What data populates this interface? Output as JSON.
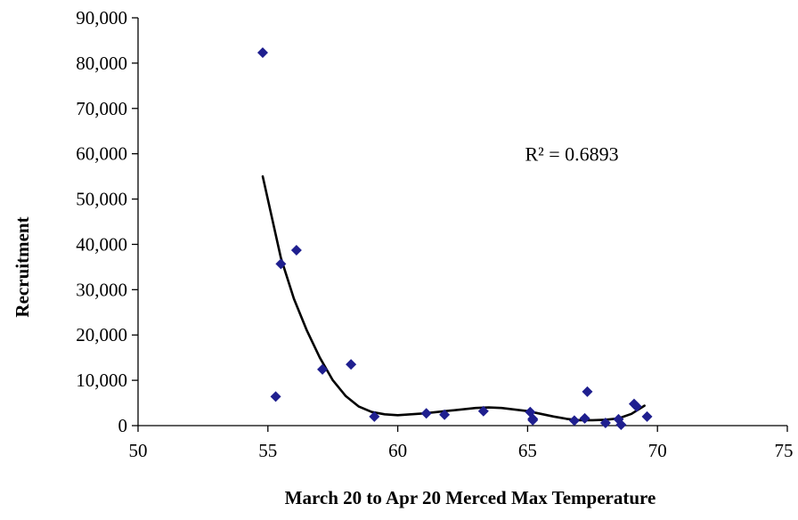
{
  "chart_data": {
    "type": "scatter",
    "title": "",
    "xlabel": "March 20 to Apr 20 Merced Max Temperature",
    "ylabel": "Recruitment",
    "xlim": [
      50,
      75
    ],
    "ylim": [
      0,
      90000
    ],
    "xticks": [
      50,
      55,
      60,
      65,
      70,
      75
    ],
    "yticks": [
      0,
      10000,
      20000,
      30000,
      40000,
      50000,
      60000,
      70000,
      80000,
      90000
    ],
    "xtick_labels": [
      "50",
      "55",
      "60",
      "65",
      "70",
      "75"
    ],
    "ytick_labels": [
      "0",
      "10,000",
      "20,000",
      "30,000",
      "40,000",
      "50,000",
      "60,000",
      "70,000",
      "80,000",
      "90,000"
    ],
    "grid": false,
    "legend": "none",
    "marker_color": "#1f1f8f",
    "trendline_color": "#000000",
    "annotation": {
      "text": "R² = 0.6893",
      "x": 64.9,
      "y": 58500
    },
    "points": [
      {
        "x": 54.8,
        "y": 82300
      },
      {
        "x": 55.3,
        "y": 6400
      },
      {
        "x": 55.5,
        "y": 35700
      },
      {
        "x": 56.1,
        "y": 38700
      },
      {
        "x": 57.1,
        "y": 12400
      },
      {
        "x": 58.2,
        "y": 13500
      },
      {
        "x": 59.1,
        "y": 2000
      },
      {
        "x": 61.1,
        "y": 2700
      },
      {
        "x": 61.8,
        "y": 2400
      },
      {
        "x": 63.3,
        "y": 3200
      },
      {
        "x": 65.1,
        "y": 3000
      },
      {
        "x": 65.2,
        "y": 1500
      },
      {
        "x": 65.2,
        "y": 1200
      },
      {
        "x": 66.8,
        "y": 1100
      },
      {
        "x": 67.2,
        "y": 1600
      },
      {
        "x": 67.3,
        "y": 7500
      },
      {
        "x": 68.0,
        "y": 600
      },
      {
        "x": 68.5,
        "y": 1400
      },
      {
        "x": 68.6,
        "y": 200
      },
      {
        "x": 69.1,
        "y": 4800
      },
      {
        "x": 69.2,
        "y": 4200
      },
      {
        "x": 69.6,
        "y": 2000
      }
    ],
    "trendline": {
      "type": "polynomial",
      "x": [
        54.8,
        55.5,
        56.0,
        56.5,
        57.0,
        57.5,
        58.0,
        58.5,
        59.0,
        59.5,
        60.0,
        61.0,
        62.0,
        63.0,
        63.5,
        64.0,
        65.0,
        66.0,
        66.5,
        67.0,
        67.5,
        68.0,
        68.5,
        69.0,
        69.5
      ],
      "y": [
        55000,
        37000,
        28000,
        21000,
        15000,
        10000,
        6500,
        4200,
        3000,
        2500,
        2300,
        2700,
        3300,
        3900,
        4000,
        3900,
        3200,
        2000,
        1500,
        1200,
        1200,
        1300,
        1600,
        2600,
        4400
      ]
    }
  }
}
